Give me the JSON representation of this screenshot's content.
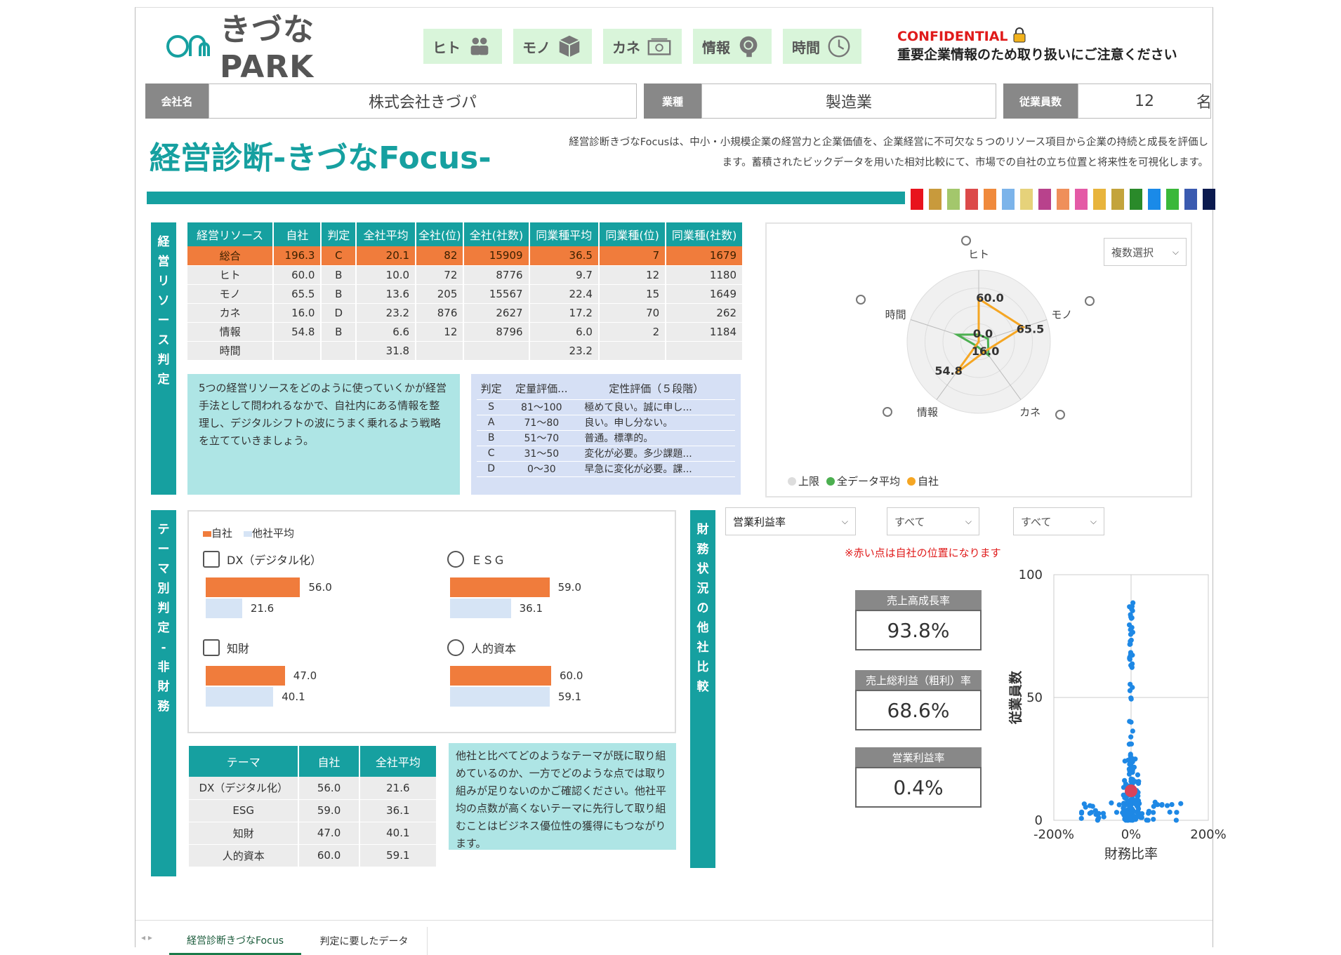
{
  "logo": {
    "text": "きづなPARK"
  },
  "nav": [
    {
      "label": "ヒト",
      "icon": "people-icon"
    },
    {
      "label": "モノ",
      "icon": "box-icon"
    },
    {
      "label": "カネ",
      "icon": "money-icon"
    },
    {
      "label": "情報",
      "icon": "brain-icon"
    },
    {
      "label": "時間",
      "icon": "clock-icon"
    }
  ],
  "confidential": {
    "title": "CONFIDENTIAL",
    "message": "重要企業情報のため取り扱いにご注意ください"
  },
  "company": {
    "name_label": "会社名",
    "name_value": "株式会社きづパ",
    "industry_label": "業種",
    "industry_value": "製造業",
    "employees_label": "従業員数",
    "employees_value": "12",
    "employees_unit": "名"
  },
  "title": "経営診断-きづなFocus-",
  "description": "経営診断きづなFocusは、中小・小規模企業の経営力と企業価値を、企業経営に不可欠な５つのリソース項目から企業の持続と成長を評価します。蓄積されたビックデータを用いた相対比較にて、市場での自社の立ち位置と将来性を可視化します。",
  "swatches": [
    "#e8131d",
    "#c89a3c",
    "#a3c76c",
    "#dc4a4a",
    "#f08a3c",
    "#7cb4ea",
    "#e6d27a",
    "#b8428c",
    "#ef8f5a",
    "#e45aa6",
    "#e8b43c",
    "#c3a43c",
    "#2a8a2a",
    "#1a8ae8",
    "#3ab83a",
    "#3a5ab0",
    "#0b1a4f"
  ],
  "resource_section": {
    "side_label": "経営リソース判定",
    "headers": [
      "経営リソース",
      "自社",
      "判定",
      "全社平均",
      "全社(位)",
      "全社(社数)",
      "同業種平均",
      "同業種(位)",
      "同業種(社数)"
    ],
    "rows": [
      [
        "総合",
        "196.3",
        "C",
        "20.1",
        "82",
        "15909",
        "36.5",
        "7",
        "1679"
      ],
      [
        "ヒト",
        "60.0",
        "B",
        "10.0",
        "72",
        "8776",
        "9.7",
        "12",
        "1180"
      ],
      [
        "モノ",
        "65.5",
        "B",
        "13.6",
        "205",
        "15567",
        "22.4",
        "15",
        "1649"
      ],
      [
        "カネ",
        "16.0",
        "D",
        "23.2",
        "876",
        "2627",
        "17.2",
        "70",
        "262"
      ],
      [
        "情報",
        "54.8",
        "B",
        "6.6",
        "12",
        "8796",
        "6.0",
        "2",
        "1184"
      ],
      [
        "時間",
        "",
        "",
        "31.8",
        "",
        "",
        "23.2",
        "",
        ""
      ]
    ],
    "note": "5つの経営リソースをどのように使っていくかが経営手法として問われるなかで、自社内にある情報を整理し、デジタルシフトの波にうまく乗れるよう戦略を立てていきましょう。",
    "legend_headers": [
      "判定",
      "定量評価...",
      "定性評価（５段階）"
    ],
    "legend_rows": [
      [
        "S",
        "81～100",
        "極めて良い。誠に申し..."
      ],
      [
        "A",
        "71～80",
        "良い。申し分ない。"
      ],
      [
        "B",
        "51～70",
        "普通。標準的。"
      ],
      [
        "C",
        "31～50",
        "変化が必要。多少課題..."
      ],
      [
        "D",
        "0～30",
        "早急に変化が必要。課..."
      ]
    ]
  },
  "radar": {
    "dropdown": "複数選択",
    "axes": [
      "ヒト",
      "モノ",
      "カネ",
      "情報",
      "時間"
    ],
    "legend": [
      "上限",
      "全データ平均",
      "自社"
    ],
    "colors": {
      "self": "#f5a623",
      "avg": "#4caf50",
      "limit": "#dddddd"
    }
  },
  "chart_data": [
    {
      "type": "radar",
      "categories": [
        "ヒト",
        "モノ",
        "カネ",
        "情報",
        "時間"
      ],
      "series": [
        {
          "name": "自社",
          "values": [
            60.0,
            65.5,
            16.0,
            54.8,
            0.0
          ]
        },
        {
          "name": "全データ平均",
          "values": [
            10.0,
            13.6,
            23.2,
            6.6,
            31.8
          ]
        }
      ],
      "data_labels": [
        "60.0",
        "65.5",
        "16.0",
        "54.8",
        "0.0"
      ]
    },
    {
      "type": "bar",
      "categories": [
        "DX（デジタル化）",
        "ESG",
        "知財",
        "人的資本"
      ],
      "series": [
        {
          "name": "自社",
          "values": [
            56.0,
            59.0,
            47.0,
            60.0
          ]
        },
        {
          "name": "他社平均",
          "values": [
            21.6,
            36.1,
            40.1,
            59.1
          ]
        }
      ]
    },
    {
      "type": "scatter",
      "xlabel": "財務比率",
      "ylabel": "従業員数",
      "xlim": [
        -200,
        200
      ],
      "ylim": [
        0,
        100
      ],
      "xticks": [
        "-200%",
        "0%",
        "200%"
      ],
      "yticks": [
        "0",
        "50",
        "100"
      ],
      "highlight": {
        "x": 0,
        "y": 12
      }
    }
  ],
  "theme_section": {
    "side_label": "テーマ別判定-非財務",
    "legend": [
      "自社",
      "他社平均"
    ],
    "items": [
      {
        "label": "DX（デジタル化）",
        "icon": "dx-chart-icon"
      },
      {
        "label": "ＥＳＧ",
        "icon": "tree-icon"
      },
      {
        "label": "知財",
        "icon": "lightbulb-icon"
      },
      {
        "label": "人的資本",
        "icon": "stairs-icon"
      }
    ],
    "table_headers": [
      "テーマ",
      "自社",
      "全社平均"
    ],
    "table_rows": [
      [
        "DX（デジタル化）",
        "56.0",
        "21.6"
      ],
      [
        "ESG",
        "59.0",
        "36.1"
      ],
      [
        "知財",
        "47.0",
        "40.1"
      ],
      [
        "人的資本",
        "60.0",
        "59.1"
      ]
    ],
    "note": "他社と比べてどのようなテーマが既に取り組めているのか、一方でどのような点では取り組みが足りないのかご確認ください。他社平均の点数が高くないテーマに先行して取り組むことはビジネス優位性の獲得にもつながります。"
  },
  "finance_section": {
    "side_label": "財務状況の他社比較",
    "dropdowns": [
      "営業利益率",
      "すべて",
      "すべて"
    ],
    "notice": "※赤い点は自社の位置になります",
    "kpis": [
      {
        "label": "売上高成長率",
        "value": "93.8%"
      },
      {
        "label": "売上総利益（粗利）率",
        "value": "68.6%"
      },
      {
        "label": "営業利益率",
        "value": "0.4%"
      }
    ]
  },
  "tabs": [
    "経営診断きづなFocus",
    "判定に要したデータ"
  ]
}
